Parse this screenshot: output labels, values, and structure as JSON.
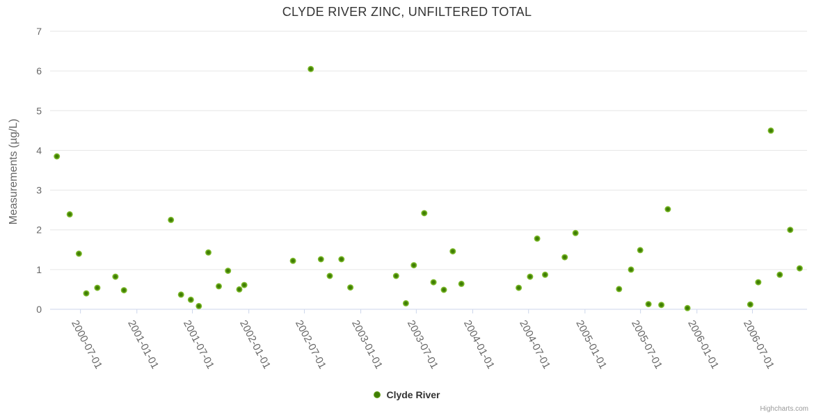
{
  "chart": {
    "title": "CLYDE RIVER ZINC, UNFILTERED TOTAL",
    "credit": "Highcharts.com"
  },
  "colors": {
    "title_text": "#333333",
    "axis_label_text": "#666666",
    "legend_text": "#333333",
    "credit_text": "#999999",
    "grid_line": "#e6e6e6",
    "axis_line": "#ccd6eb",
    "marker_edge": "#8bc53f",
    "marker_mid": "#6fae1d",
    "marker_core": "#3f7d05"
  },
  "chart_data": {
    "type": "scatter",
    "title": "CLYDE RIVER ZINC, UNFILTERED TOTAL",
    "xlabel": "",
    "ylabel": "Measurements (µg/L)",
    "ylim": [
      0,
      7
    ],
    "y_ticks": [
      0,
      1,
      2,
      3,
      4,
      5,
      6,
      7
    ],
    "x_ticks": [
      "2000-07-01",
      "2001-01-01",
      "2001-07-01",
      "2002-01-01",
      "2002-07-01",
      "2003-01-01",
      "2003-07-01",
      "2004-01-01",
      "2004-07-01",
      "2005-01-01",
      "2005-07-01",
      "2006-01-01",
      "2006-07-01"
    ],
    "x_range": [
      "2000-03-24",
      "2006-12-26"
    ],
    "grid": true,
    "legend_position": "bottom-center",
    "series": [
      {
        "name": "Clyde River",
        "color": "#6fae1d",
        "points": [
          [
            "2000-04-15",
            3.85
          ],
          [
            "2000-05-27",
            2.39
          ],
          [
            "2000-06-26",
            1.4
          ],
          [
            "2000-07-20",
            0.4
          ],
          [
            "2000-08-25",
            0.54
          ],
          [
            "2000-10-23",
            0.82
          ],
          [
            "2000-11-20",
            0.48
          ],
          [
            "2001-04-22",
            2.25
          ],
          [
            "2001-05-25",
            0.37
          ],
          [
            "2001-06-26",
            0.24
          ],
          [
            "2001-07-22",
            0.08
          ],
          [
            "2001-08-22",
            1.43
          ],
          [
            "2001-09-25",
            0.58
          ],
          [
            "2001-10-25",
            0.97
          ],
          [
            "2001-12-01",
            0.5
          ],
          [
            "2001-12-17",
            0.61
          ],
          [
            "2002-05-25",
            1.22
          ],
          [
            "2002-07-22",
            6.05
          ],
          [
            "2002-08-24",
            1.26
          ],
          [
            "2002-09-22",
            0.84
          ],
          [
            "2002-10-30",
            1.26
          ],
          [
            "2002-11-28",
            0.55
          ],
          [
            "2003-04-26",
            0.84
          ],
          [
            "2003-05-28",
            0.15
          ],
          [
            "2003-06-23",
            1.11
          ],
          [
            "2003-07-27",
            2.42
          ],
          [
            "2003-08-26",
            0.68
          ],
          [
            "2003-09-29",
            0.49
          ],
          [
            "2003-10-28",
            1.46
          ],
          [
            "2003-11-25",
            0.64
          ],
          [
            "2004-05-30",
            0.54
          ],
          [
            "2004-07-06",
            0.82
          ],
          [
            "2004-07-29",
            1.78
          ],
          [
            "2004-08-24",
            0.87
          ],
          [
            "2004-10-27",
            1.31
          ],
          [
            "2004-12-01",
            1.92
          ],
          [
            "2005-04-22",
            0.51
          ],
          [
            "2005-05-31",
            1.0
          ],
          [
            "2005-06-30",
            1.49
          ],
          [
            "2005-07-27",
            0.13
          ],
          [
            "2005-09-07",
            0.11
          ],
          [
            "2005-09-28",
            2.52
          ],
          [
            "2005-12-01",
            0.03
          ],
          [
            "2006-06-24",
            0.12
          ],
          [
            "2006-07-20",
            0.68
          ],
          [
            "2006-08-30",
            4.5
          ],
          [
            "2006-09-28",
            0.87
          ],
          [
            "2006-11-01",
            2.0
          ],
          [
            "2006-12-02",
            1.03
          ]
        ]
      }
    ]
  }
}
